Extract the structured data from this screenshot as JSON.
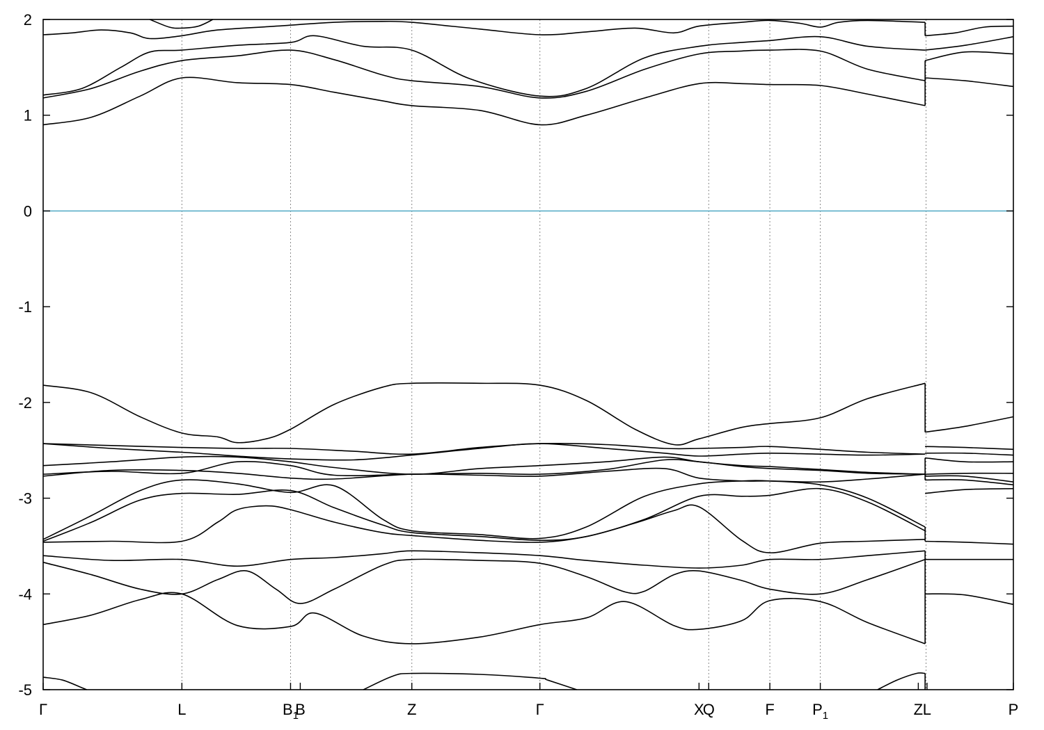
{
  "chart_data": {
    "type": "line",
    "title": "",
    "xlabel": "",
    "ylabel": "",
    "ylim": [
      -5,
      2
    ],
    "yticks": [
      "2",
      "1",
      "0",
      "-1",
      "-2",
      "-3",
      "-4",
      "-5"
    ],
    "yticks_values": [
      2,
      1,
      0,
      -1,
      -2,
      -3,
      -4,
      -5
    ],
    "zero_line": {
      "y": 0,
      "color": "#5aaec8"
    },
    "kpoints": [
      {
        "label": "Γ",
        "pos": 0.0
      },
      {
        "label": "L",
        "pos": 0.143
      },
      {
        "label": "B",
        "sub": "1",
        "pos": 0.255
      },
      {
        "label": "B",
        "pos": 0.265
      },
      {
        "label": "Z",
        "pos": 0.38
      },
      {
        "label": "Γ",
        "pos": 0.512
      },
      {
        "label": "X",
        "pos": 0.676
      },
      {
        "label": "Q",
        "pos": 0.686
      },
      {
        "label": "F",
        "pos": 0.749
      },
      {
        "label": "P",
        "sub": "1",
        "pos": 0.801
      },
      {
        "label": "Z",
        "pos": 0.902
      },
      {
        "label": "L",
        "pos": 0.911
      },
      {
        "label": "P",
        "pos": 1.0
      }
    ],
    "vlines": [
      0.143,
      0.255,
      0.38,
      0.512,
      0.686,
      0.749,
      0.801,
      0.91
    ],
    "grid": false,
    "legend": "none",
    "series": [
      {
        "x": [
          0.0,
          0.05,
          0.1,
          0.143,
          0.2,
          0.255,
          0.3,
          0.35,
          0.38,
          0.45,
          0.512,
          0.56,
          0.62,
          0.676,
          0.72,
          0.749,
          0.801,
          0.85,
          0.909
        ],
        "y": [
          0.9,
          0.98,
          1.2,
          1.39,
          1.34,
          1.32,
          1.24,
          1.15,
          1.1,
          1.05,
          0.9,
          1.0,
          1.18,
          1.33,
          1.33,
          1.32,
          1.31,
          1.22,
          1.1
        ]
      },
      {
        "x": [
          0.909,
          0.95,
          1.0
        ],
        "y": [
          1.39,
          1.36,
          1.3
        ]
      },
      {
        "x": [
          0.0,
          0.05,
          0.1,
          0.143,
          0.2,
          0.255,
          0.3,
          0.35,
          0.38,
          0.45,
          0.512,
          0.56,
          0.62,
          0.676,
          0.72,
          0.749,
          0.801,
          0.85,
          0.909
        ],
        "y": [
          1.18,
          1.28,
          1.46,
          1.57,
          1.62,
          1.68,
          1.58,
          1.42,
          1.36,
          1.3,
          1.18,
          1.25,
          1.48,
          1.64,
          1.67,
          1.68,
          1.67,
          1.48,
          1.36
        ]
      },
      {
        "x": [
          0.909,
          0.95,
          1.0
        ],
        "y": [
          1.57,
          1.66,
          1.64
        ]
      },
      {
        "x": [
          0.0,
          0.04,
          0.08,
          0.11,
          0.143,
          0.2,
          0.255,
          0.28,
          0.33,
          0.38,
          0.44,
          0.512,
          0.56,
          0.62,
          0.676,
          0.72,
          0.749,
          0.801,
          0.85,
          0.909
        ],
        "y": [
          1.21,
          1.28,
          1.5,
          1.66,
          1.68,
          1.73,
          1.76,
          1.83,
          1.72,
          1.68,
          1.38,
          1.2,
          1.28,
          1.6,
          1.72,
          1.76,
          1.78,
          1.82,
          1.72,
          1.68
        ]
      },
      {
        "x": [
          0.909,
          0.95,
          1.0
        ],
        "y": [
          1.68,
          1.73,
          1.82
        ]
      },
      {
        "x": [
          0.0,
          0.03,
          0.06,
          0.09,
          0.11,
          0.143,
          0.18,
          0.24,
          0.3,
          0.35,
          0.38,
          0.45,
          0.512,
          0.56,
          0.61,
          0.65,
          0.676,
          0.72,
          0.749,
          0.78,
          0.801,
          0.82,
          0.85,
          0.909
        ],
        "y": [
          1.84,
          1.86,
          1.89,
          1.86,
          1.8,
          1.83,
          1.89,
          1.93,
          1.97,
          1.98,
          1.97,
          1.9,
          1.84,
          1.87,
          1.91,
          1.86,
          1.93,
          1.97,
          1.99,
          1.96,
          1.92,
          1.97,
          1.99,
          1.97
        ]
      },
      {
        "x": [
          0.909,
          0.94,
          0.97,
          1.0
        ],
        "y": [
          1.83,
          1.86,
          1.92,
          1.93
        ]
      },
      {
        "x": [
          0.0,
          0.05,
          0.1,
          0.143,
          0.18,
          0.2,
          0.23,
          0.255,
          0.3,
          0.35,
          0.38,
          0.45,
          0.512,
          0.56,
          0.61,
          0.65,
          0.676,
          0.72,
          0.749,
          0.801,
          0.85,
          0.909
        ],
        "y": [
          -1.82,
          -1.9,
          -2.15,
          -2.32,
          -2.36,
          -2.42,
          -2.38,
          -2.28,
          -2.02,
          -1.84,
          -1.8,
          -1.8,
          -1.82,
          -1.98,
          -2.28,
          -2.44,
          -2.38,
          -2.26,
          -2.22,
          -2.16,
          -1.96,
          -1.8
        ]
      },
      {
        "x": [
          0.909,
          0.95,
          1.0
        ],
        "y": [
          -2.31,
          -2.25,
          -2.15
        ]
      },
      {
        "x": [
          0.0,
          0.07,
          0.143,
          0.2,
          0.255,
          0.32,
          0.38,
          0.45,
          0.512,
          0.58,
          0.64,
          0.676,
          0.72,
          0.749,
          0.801,
          0.85,
          0.909
        ],
        "y": [
          -2.43,
          -2.45,
          -2.47,
          -2.48,
          -2.48,
          -2.51,
          -2.54,
          -2.47,
          -2.43,
          -2.44,
          -2.48,
          -2.48,
          -2.47,
          -2.46,
          -2.49,
          -2.52,
          -2.54
        ]
      },
      {
        "x": [
          0.909,
          0.95,
          1.0
        ],
        "y": [
          -2.46,
          -2.47,
          -2.49
        ]
      },
      {
        "x": [
          0.0,
          0.07,
          0.143,
          0.2,
          0.255,
          0.32,
          0.38,
          0.45,
          0.512,
          0.58,
          0.64,
          0.676,
          0.72,
          0.749,
          0.801,
          0.85,
          0.909
        ],
        "y": [
          -2.43,
          -2.48,
          -2.52,
          -2.56,
          -2.59,
          -2.6,
          -2.55,
          -2.48,
          -2.43,
          -2.48,
          -2.53,
          -2.56,
          -2.54,
          -2.53,
          -2.54,
          -2.55,
          -2.54
        ]
      },
      {
        "x": [
          0.909,
          0.95,
          1.0
        ],
        "y": [
          -2.53,
          -2.53,
          -2.55
        ]
      },
      {
        "x": [
          0.0,
          0.07,
          0.143,
          0.2,
          0.255,
          0.3,
          0.38,
          0.45,
          0.512,
          0.58,
          0.64,
          0.676,
          0.72,
          0.749,
          0.801,
          0.85,
          0.909
        ],
        "y": [
          -2.66,
          -2.62,
          -2.57,
          -2.57,
          -2.62,
          -2.68,
          -2.75,
          -2.69,
          -2.66,
          -2.62,
          -2.57,
          -2.62,
          -2.66,
          -2.67,
          -2.7,
          -2.73,
          -2.75
        ]
      },
      {
        "x": [
          0.909,
          0.95,
          1.0
        ],
        "y": [
          -2.58,
          -2.62,
          -2.62
        ]
      },
      {
        "x": [
          0.0,
          0.07,
          0.143,
          0.2,
          0.255,
          0.3,
          0.38,
          0.45,
          0.512,
          0.58,
          0.64,
          0.676,
          0.72,
          0.749,
          0.801,
          0.85,
          0.909
        ],
        "y": [
          -2.75,
          -2.72,
          -2.74,
          -2.62,
          -2.66,
          -2.76,
          -2.75,
          -2.74,
          -2.75,
          -2.7,
          -2.6,
          -2.62,
          -2.67,
          -2.69,
          -2.71,
          -2.74,
          -2.75
        ]
      },
      {
        "x": [
          0.909,
          0.95,
          1.0
        ],
        "y": [
          -2.75,
          -2.74,
          -2.74
        ]
      },
      {
        "x": [
          0.0,
          0.07,
          0.143,
          0.2,
          0.255,
          0.3,
          0.38,
          0.45,
          0.512,
          0.58,
          0.64,
          0.676,
          0.72,
          0.749,
          0.801,
          0.85,
          0.909
        ],
        "y": [
          -2.77,
          -2.71,
          -2.71,
          -2.74,
          -2.79,
          -2.8,
          -2.75,
          -2.76,
          -2.77,
          -2.72,
          -2.69,
          -2.79,
          -2.82,
          -2.82,
          -2.83,
          -2.8,
          -2.75
        ]
      },
      {
        "x": [
          0.909,
          0.95,
          1.0
        ],
        "y": [
          -2.77,
          -2.77,
          -2.83
        ]
      },
      {
        "x": [
          0.0,
          0.05,
          0.1,
          0.143,
          0.2,
          0.255,
          0.3,
          0.35,
          0.38,
          0.45,
          0.512,
          0.56,
          0.62,
          0.676,
          0.72,
          0.749,
          0.801,
          0.85,
          0.909
        ],
        "y": [
          -3.43,
          -3.18,
          -2.92,
          -2.81,
          -2.85,
          -2.94,
          -2.87,
          -3.22,
          -3.34,
          -3.38,
          -3.42,
          -3.3,
          -2.98,
          -2.85,
          -2.82,
          -2.82,
          -2.86,
          -3.0,
          -3.3
        ]
      },
      {
        "x": [
          0.909,
          0.95,
          1.0
        ],
        "y": [
          -2.81,
          -2.81,
          -2.86
        ]
      },
      {
        "x": [
          0.0,
          0.05,
          0.1,
          0.143,
          0.2,
          0.255,
          0.3,
          0.35,
          0.38,
          0.45,
          0.512,
          0.56,
          0.62,
          0.676,
          0.72,
          0.749,
          0.801,
          0.85,
          0.909
        ],
        "y": [
          -3.45,
          -3.25,
          -3.02,
          -2.95,
          -2.96,
          -2.92,
          -3.1,
          -3.28,
          -3.36,
          -3.4,
          -3.44,
          -3.4,
          -3.22,
          -2.98,
          -2.98,
          -2.97,
          -2.9,
          -3.04,
          -3.34
        ]
      },
      {
        "x": [
          0.909,
          0.95,
          1.0
        ],
        "y": [
          -2.95,
          -2.91,
          -2.9
        ]
      },
      {
        "x": [
          0.0,
          0.07,
          0.143,
          0.18,
          0.2,
          0.23,
          0.255,
          0.3,
          0.35,
          0.38,
          0.45,
          0.512,
          0.56,
          0.61,
          0.65,
          0.676,
          0.72,
          0.749,
          0.801,
          0.85,
          0.909
        ],
        "y": [
          -3.46,
          -3.45,
          -3.45,
          -3.25,
          -3.12,
          -3.08,
          -3.12,
          -3.25,
          -3.36,
          -3.39,
          -3.44,
          -3.46,
          -3.4,
          -3.26,
          -3.13,
          -3.09,
          -3.44,
          -3.57,
          -3.47,
          -3.45,
          -3.43
        ]
      },
      {
        "x": [
          0.909,
          0.95,
          1.0
        ],
        "y": [
          -3.45,
          -3.46,
          -3.48
        ]
      },
      {
        "x": [
          0.0,
          0.07,
          0.143,
          0.2,
          0.255,
          0.3,
          0.35,
          0.38,
          0.45,
          0.512,
          0.56,
          0.62,
          0.676,
          0.72,
          0.749,
          0.801,
          0.85,
          0.909
        ],
        "y": [
          -3.6,
          -3.65,
          -3.64,
          -3.71,
          -3.64,
          -3.62,
          -3.58,
          -3.55,
          -3.57,
          -3.6,
          -3.65,
          -3.7,
          -3.73,
          -3.7,
          -3.64,
          -3.64,
          -3.6,
          -3.55
        ]
      },
      {
        "x": [
          0.909,
          0.95,
          1.0
        ],
        "y": [
          -3.64,
          -3.64,
          -3.64
        ]
      },
      {
        "x": [
          0.0,
          0.05,
          0.1,
          0.143,
          0.18,
          0.21,
          0.24,
          0.265,
          0.3,
          0.35,
          0.38,
          0.45,
          0.512,
          0.56,
          0.6,
          0.62,
          0.65,
          0.676,
          0.72,
          0.749,
          0.801,
          0.85,
          0.909
        ],
        "y": [
          -3.67,
          -3.8,
          -3.95,
          -4.0,
          -3.85,
          -3.76,
          -3.95,
          -4.1,
          -3.95,
          -3.7,
          -3.64,
          -3.65,
          -3.68,
          -3.82,
          -3.98,
          -3.97,
          -3.8,
          -3.76,
          -3.86,
          -3.95,
          -4.0,
          -3.85,
          -3.64
        ]
      },
      {
        "x": [
          0.909,
          0.95,
          1.0
        ],
        "y": [
          -4.0,
          -4.01,
          -4.11
        ]
      },
      {
        "x": [
          0.0,
          0.05,
          0.1,
          0.143,
          0.2,
          0.255,
          0.28,
          0.33,
          0.38,
          0.45,
          0.512,
          0.56,
          0.6,
          0.65,
          0.676,
          0.72,
          0.749,
          0.801,
          0.85,
          0.909
        ],
        "y": [
          -4.32,
          -4.22,
          -4.06,
          -4.0,
          -4.33,
          -4.34,
          -4.2,
          -4.44,
          -4.52,
          -4.45,
          -4.32,
          -4.25,
          -4.08,
          -4.33,
          -4.37,
          -4.28,
          -4.07,
          -4.08,
          -4.3,
          -4.52
        ]
      },
      {
        "x": [
          0.0,
          0.02,
          0.04,
          0.045
        ],
        "y": [
          -4.87,
          -4.9,
          -4.98,
          -5.0
        ]
      },
      {
        "x": [
          0.33,
          0.36,
          0.38,
          0.45,
          0.512,
          0.52,
          0.55
        ],
        "y": [
          -5.0,
          -4.86,
          -4.83,
          -4.84,
          -4.88,
          -4.9,
          -5.0
        ]
      },
      {
        "x": [
          0.86,
          0.88,
          0.9,
          0.909
        ],
        "y": [
          -5.0,
          -4.9,
          -4.83,
          -4.83
        ]
      },
      {
        "x": [
          0.11,
          0.13,
          0.143,
          0.16,
          0.175
        ],
        "y": [
          2.0,
          1.92,
          1.91,
          1.93,
          2.0
        ]
      }
    ]
  }
}
